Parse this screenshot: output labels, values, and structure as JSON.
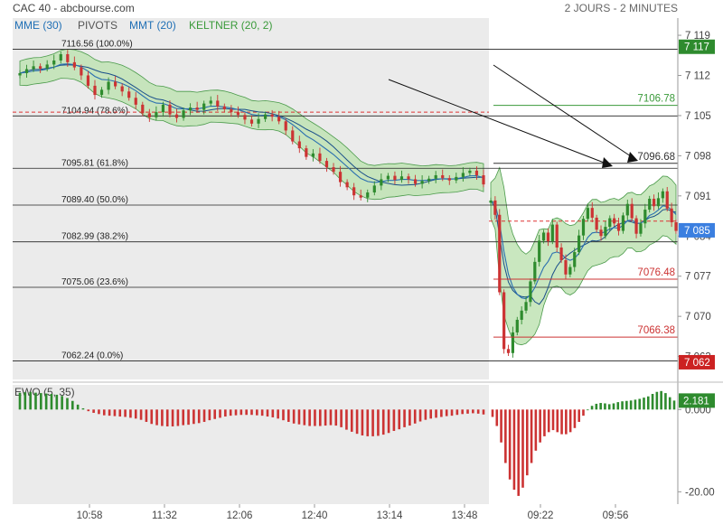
{
  "header": {
    "title": "CAC 40 - abcbourse.com",
    "period": "2 JOURS - 2 MINUTES"
  },
  "legend": [
    {
      "label": "MME (30)",
      "color": "#1f6fb5"
    },
    {
      "label": "PIVOTS",
      "color": "#555555"
    },
    {
      "label": "MMT (20)",
      "color": "#1f6fb5"
    },
    {
      "label": "KELTNER (20, 2)",
      "color": "#3a9a3a"
    }
  ],
  "colors": {
    "up": "#2e8b2e",
    "down": "#cc3333",
    "band_fill": "#bfe3b4",
    "band_line": "#4a9a4a",
    "ma_line": "#2a6fb0",
    "prev_session_bg": "#ebebeb",
    "price_tag": "#3b7fe0"
  },
  "chart_data": [
    {
      "type": "candlestick",
      "name": "price",
      "ylim": [
        7059,
        7122
      ],
      "y_ticks": [
        "7 119",
        "7 112",
        "7 105",
        "7 098",
        "7 091",
        "7 084",
        "7 077",
        "7 070",
        "7 063"
      ],
      "y_tick_values": [
        7119,
        7112,
        7105,
        7098,
        7091,
        7084,
        7077,
        7070,
        7063
      ],
      "x_ticks": [
        "10:58",
        "11:32",
        "12:06",
        "12:40",
        "13:14",
        "13:48",
        "09:22",
        "09:56"
      ],
      "fib_levels": [
        {
          "label": "7116.56",
          "pct": "(100.0%)",
          "value": 7116.56
        },
        {
          "label": "7104.94",
          "pct": "(78.6%)",
          "value": 7104.94
        },
        {
          "label": "7095.81",
          "pct": "(61.8%)",
          "value": 7095.81
        },
        {
          "label": "7089.40",
          "pct": "(50.0%)",
          "value": 7089.4
        },
        {
          "label": "7082.99",
          "pct": "(38.2%)",
          "value": 7082.99
        },
        {
          "label": "7075.06",
          "pct": "(23.6%)",
          "value": 7075.06
        },
        {
          "label": "7062.24",
          "pct": "(0.0%)",
          "value": 7062.24
        }
      ],
      "pivots": [
        {
          "label": "7106.78",
          "value": 7106.78,
          "color": "#3a9a3a"
        },
        {
          "label": "7096.68",
          "value": 7096.68,
          "color": "#333333"
        },
        {
          "label": "7076.48",
          "value": 7076.48,
          "color": "#cc3333"
        },
        {
          "label": "7066.38",
          "value": 7066.38,
          "color": "#cc3333"
        }
      ],
      "price_tags": [
        {
          "label": "7 117",
          "value": 7117,
          "color": "#2e8b2e"
        },
        {
          "label": "7 085",
          "value": 7085,
          "color": "#3b7fe0"
        },
        {
          "label": "7 062",
          "value": 7062,
          "color": "#cc2222"
        }
      ],
      "ref_lines": [
        {
          "value": 7105.6,
          "session": "prev",
          "color": "#d33"
        },
        {
          "value": 7086.6,
          "session": "today",
          "color": "#d33"
        }
      ],
      "day1_close": [
        7112.4,
        7113.1,
        7113.6,
        7113.2,
        7113.9,
        7114.6,
        7115.7,
        7114.3,
        7113.4,
        7112.0,
        7110.2,
        7108.6,
        7109.5,
        7110.9,
        7110.1,
        7109.2,
        7108.1,
        7106.9,
        7105.4,
        7104.7,
        7105.6,
        7106.9,
        7105.2,
        7104.6,
        7105.9,
        7106.4,
        7106.0,
        7107.1,
        7107.6,
        7106.6,
        7106.1,
        7105.6,
        7105.1,
        7104.3,
        7103.6,
        7104.4,
        7105.2,
        7104.8,
        7104.0,
        7102.4,
        7100.5,
        7099.3,
        7097.8,
        7098.4,
        7097.1,
        7096.0,
        7095.2,
        7093.4,
        7092.5,
        7091.1,
        7090.7,
        7091.6,
        7092.8,
        7093.9,
        7094.5,
        7093.8,
        7094.4,
        7093.9,
        7093.1,
        7093.6,
        7094.0,
        7094.6,
        7094.1,
        7093.7,
        7094.3,
        7095.0,
        7095.4,
        7094.6,
        7093.0
      ],
      "day2_close": [
        7090.2,
        7087.7,
        7074.2,
        7064.3,
        7063.6,
        7067.2,
        7069.4,
        7071.0,
        7072.5,
        7076.1,
        7079.5,
        7083.2,
        7084.6,
        7083.1,
        7086.0,
        7082.0,
        7079.8,
        7077.3,
        7078.6,
        7081.2,
        7084.1,
        7087.0,
        7088.9,
        7087.2,
        7085.1,
        7084.0,
        7085.6,
        7087.1,
        7086.2,
        7084.9,
        7087.6,
        7089.6,
        7087.1,
        7084.4,
        7086.2,
        7088.6,
        7090.5,
        7089.2,
        7090.6,
        7091.8,
        7088.8,
        7086.4,
        7084.9
      ]
    },
    {
      "type": "bar",
      "name": "EWO (5, 35)",
      "ylim": [
        -23,
        6
      ],
      "y_ticks": [
        "0.000",
        "-20.00"
      ],
      "y_tick_values": [
        0,
        -20
      ],
      "current_label": "2.181",
      "current_value": 2.181,
      "day1": [
        4.1,
        4.2,
        4.3,
        4.1,
        4.0,
        3.9,
        3.8,
        3.6,
        3.3,
        2.8,
        2.1,
        1.2,
        0.3,
        -0.4,
        -0.8,
        -1.1,
        -1.4,
        -1.5,
        -1.6,
        -1.7,
        -1.8,
        -2.0,
        -2.2,
        -2.5,
        -3.0,
        -3.5,
        -3.8,
        -4.0,
        -4.1,
        -4.1,
        -4.0,
        -3.8,
        -3.7,
        -3.5,
        -3.3,
        -3.0,
        -2.6,
        -2.3,
        -2.0,
        -1.7,
        -1.5,
        -1.4,
        -1.3,
        -1.3,
        -1.3,
        -1.4,
        -1.5,
        -1.7,
        -1.9,
        -2.2,
        -2.6,
        -3.0,
        -3.4,
        -3.6,
        -3.8,
        -4.0,
        -4.0,
        -4.0,
        -3.9,
        -3.8,
        -3.9,
        -4.3,
        -4.9,
        -5.4,
        -5.9,
        -6.3,
        -6.5,
        -6.5,
        -6.4,
        -6.1,
        -5.7,
        -5.2,
        -4.8,
        -4.3,
        -3.9,
        -3.4,
        -2.9,
        -2.5,
        -2.2,
        -2.0,
        -1.8,
        -1.6,
        -1.5,
        -1.3,
        -1.1,
        -1.0,
        -0.9,
        -1.0,
        -1.2
      ],
      "day2": [
        -1.8,
        -4.0,
        -8.0,
        -13.0,
        -17.0,
        -19.5,
        -21.0,
        -19.0,
        -16.0,
        -13.0,
        -10.0,
        -8.0,
        -6.5,
        -5.5,
        -5.0,
        -5.5,
        -6.0,
        -6.0,
        -5.5,
        -4.5,
        -3.0,
        -1.5,
        0.0,
        0.9,
        1.4,
        1.6,
        1.5,
        1.3,
        1.5,
        1.8,
        2.0,
        2.1,
        2.2,
        2.4,
        2.6,
        2.9,
        3.2,
        3.8,
        4.3,
        4.5,
        4.0,
        3.0,
        2.181
      ]
    }
  ]
}
